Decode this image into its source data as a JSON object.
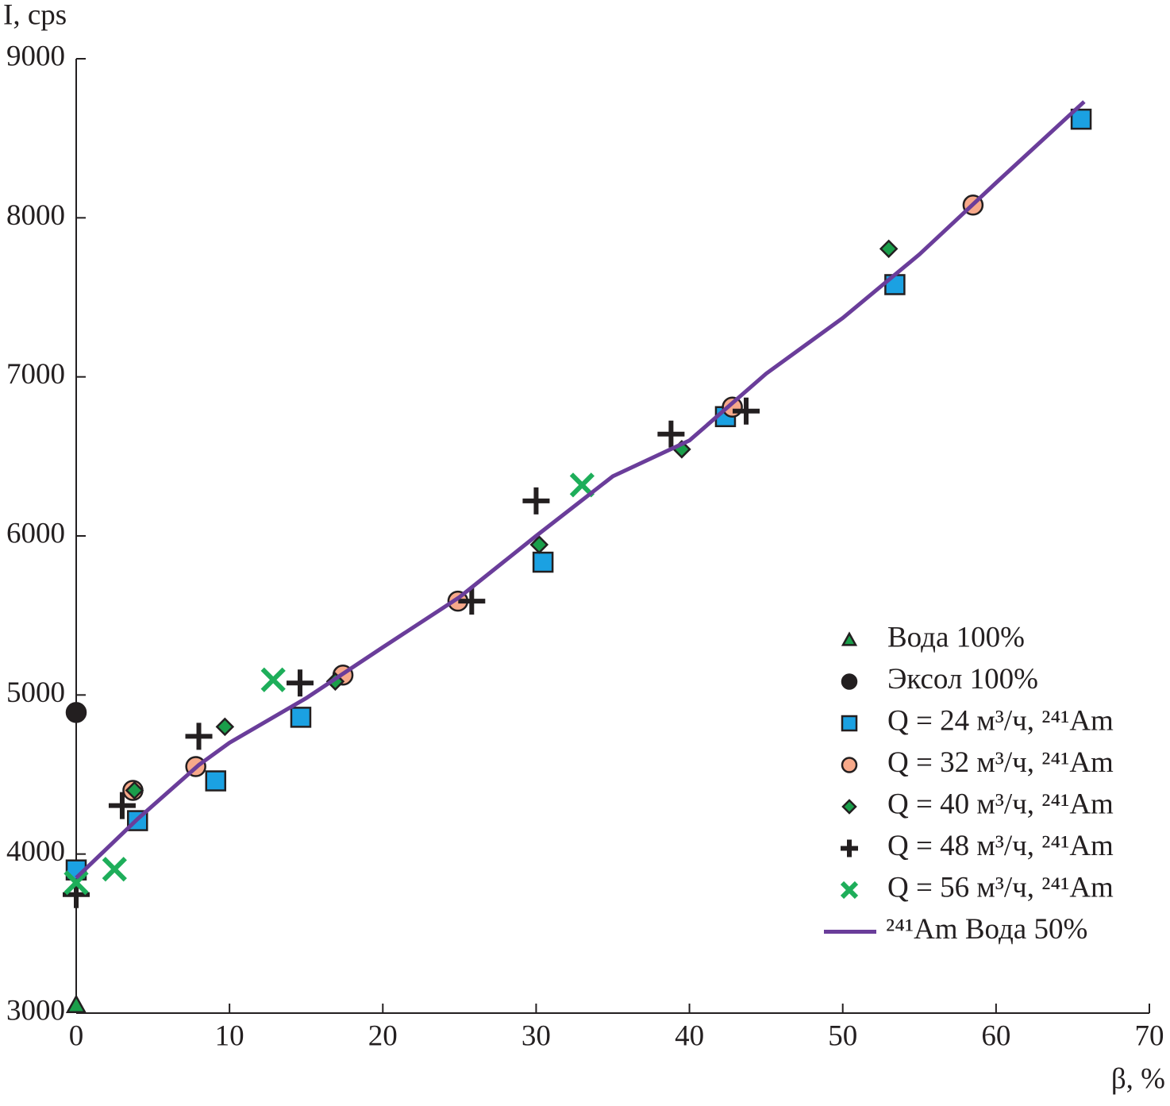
{
  "chart_data": {
    "type": "scatter",
    "y_label": "I, cps",
    "x_label": "β, %",
    "xlim": [
      0,
      70
    ],
    "xticks": [
      0,
      10,
      20,
      30,
      40,
      50,
      60,
      70
    ],
    "ylim": [
      3000,
      9000
    ],
    "yticks": [
      3000,
      4000,
      5000,
      6000,
      7000,
      8000,
      9000
    ],
    "legend": "right",
    "series": [
      {
        "name": "Вода 100%",
        "marker": "triangle",
        "color": "#1a9e4a",
        "x": [
          0
        ],
        "values": [
          3050
        ]
      },
      {
        "name": "Эксол 100%",
        "marker": "circle",
        "color": "#231f20",
        "x": [
          0
        ],
        "values": [
          4890
        ]
      },
      {
        "name": "Q = 24 м³/ч, ²⁴¹Am",
        "marker": "square",
        "color": "#1ba1e2",
        "x": [
          0,
          4.0,
          9.1,
          14.65,
          30.45,
          42.35,
          53.4,
          65.55
        ],
        "values": [
          3900,
          4210,
          4460,
          4860,
          5835,
          6750,
          7580,
          8620
        ]
      },
      {
        "name": "Q = 32 м³/ч, ²⁴¹Am",
        "marker": "circle",
        "color": "#f7a98a",
        "x": [
          3.7,
          7.8,
          17.4,
          24.9,
          42.8,
          58.5
        ],
        "values": [
          4400,
          4550,
          5125,
          5590,
          6810,
          8080
        ]
      },
      {
        "name": "Q = 40 м³/ч, ²⁴¹Am",
        "marker": "diamond",
        "color": "#1a9e4a",
        "x": [
          3.8,
          9.7,
          16.9,
          30.2,
          39.5,
          53.0
        ],
        "values": [
          4400,
          4800,
          5085,
          5945,
          6545,
          7805
        ]
      },
      {
        "name": "Q = 48 м³/ч, ²⁴¹Am",
        "marker": "plus",
        "color": "#231f20",
        "x": [
          0,
          3.0,
          8.0,
          14.6,
          25.8,
          30.0,
          38.8,
          43.7
        ],
        "values": [
          3745,
          4305,
          4740,
          5075,
          5590,
          6220,
          6640,
          6785
        ]
      },
      {
        "name": "Q = 56 м³/ч, ²⁴¹Am",
        "marker": "cross",
        "color": "#1eae5a",
        "x": [
          0,
          2.5,
          12.85,
          33.0
        ],
        "values": [
          3820,
          3905,
          5095,
          6320
        ]
      },
      {
        "name": "²⁴¹Am Вода 50%",
        "marker": "line",
        "color": "#6a3d9a",
        "x": [
          0,
          4,
          8,
          10,
          15,
          20,
          25,
          30,
          35,
          40,
          45,
          50,
          55,
          60,
          65.75
        ],
        "values": [
          3850,
          4220,
          4560,
          4700,
          4980,
          5300,
          5615,
          6000,
          6375,
          6600,
          7020,
          7370,
          7770,
          8220,
          8730
        ]
      }
    ]
  }
}
